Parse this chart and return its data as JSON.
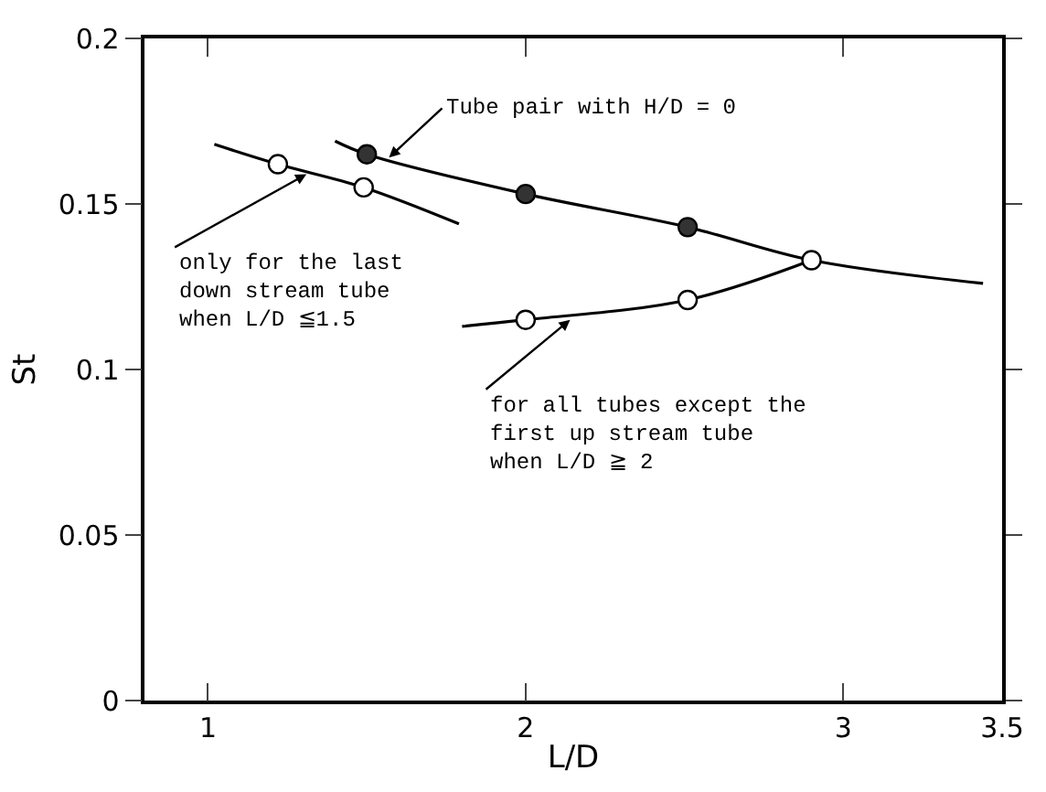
{
  "chart_data": {
    "type": "line",
    "xlabel": "L/D",
    "ylabel": "St",
    "xlim": [
      0.8,
      3.5
    ],
    "xticks": [
      1,
      2,
      3,
      3.5
    ],
    "ylim": [
      0,
      0.2
    ],
    "yticks": [
      0,
      0.05,
      0.1,
      0.15,
      0.2
    ],
    "line_style": "solid",
    "series": [
      {
        "marker": "none",
        "color": "#000000",
        "x": [
          1.02,
          1.22,
          1.49,
          1.79
        ],
        "values": [
          0.168,
          0.162,
          0.155,
          0.144
        ]
      },
      {
        "marker": "none",
        "color": "#000000",
        "x": [
          1.4,
          1.5,
          2.0,
          2.51,
          2.9,
          3.44
        ],
        "values": [
          0.169,
          0.165,
          0.153,
          0.143,
          0.133,
          0.126
        ]
      },
      {
        "marker": "none",
        "color": "#000000",
        "x": [
          1.8,
          2.0,
          2.51,
          2.9
        ],
        "values": [
          0.113,
          0.115,
          0.121,
          0.133
        ]
      },
      {
        "type": "scatter",
        "marker": "circle",
        "color": "#333333",
        "x": [
          1.5,
          2.0,
          2.51
        ],
        "values": [
          0.165,
          0.153,
          0.143
        ]
      },
      {
        "type": "scatter",
        "marker": "circle",
        "color": "#ffffff",
        "x": [
          1.22,
          1.49,
          2.0,
          2.51,
          2.9
        ],
        "values": [
          0.162,
          0.155,
          0.115,
          0.121,
          0.133
        ]
      }
    ],
    "annotations": [
      {
        "text": "Tube pair with H/D = 0",
        "x": 1.57,
        "y": 0.164
      },
      {
        "text": "only for the last\ndown stream tube\nwhen L/D ≦1.5",
        "x": 1.31,
        "y": 0.159
      },
      {
        "text": "for all tubes except the\nfirst up stream tube\nwhen L/D ≧ 2",
        "x": 2.14,
        "y": 0.115
      }
    ]
  }
}
